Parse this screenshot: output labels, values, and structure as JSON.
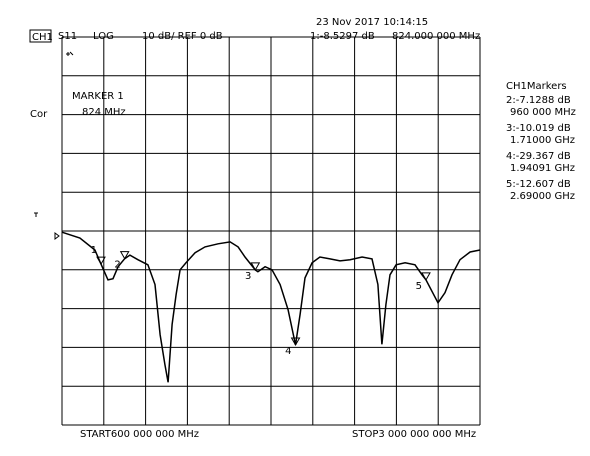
{
  "chart_data": {
    "type": "line",
    "header": {
      "channel": "CH1",
      "parameter": "S11",
      "format": "LOG",
      "scale": "10 dB/ REF 0 dB",
      "datetime": "23 Nov 2017  10:14:15",
      "active_marker_value": "1:-8.5297 dB",
      "active_marker_freq": "824.000 000 MHz"
    },
    "correction": "Cor",
    "marker_box": {
      "title": "MARKER 1",
      "freq": "824 MHz"
    },
    "start_label": "START600 000 000 MHz",
    "stop_label": "STOP3 000 000 000 MHz",
    "marker_table": {
      "title": "CH1Markers",
      "rows": [
        {
          "value": "2:-7.1288 dB",
          "freq": "960 000 MHz"
        },
        {
          "value": "3:-10.019 dB",
          "freq": "1.71000 GHz"
        },
        {
          "value": "4:-29.367 dB",
          "freq": "1.94091 GHz"
        },
        {
          "value": "5:-12.607 dB",
          "freq": "2.69000 GHz"
        }
      ]
    },
    "xlim": [
      600,
      3000
    ],
    "ylim": [
      -50,
      50
    ],
    "xticks": [
      600,
      840,
      1080,
      1320,
      1560,
      1800,
      2040,
      2280,
      2520,
      2760,
      3000
    ],
    "yticks": [
      -50,
      -40,
      -30,
      -20,
      -10,
      0,
      10,
      20,
      30,
      40,
      50
    ],
    "grid": true,
    "series": [
      {
        "color": "#000000",
        "x": [
          600,
          703,
          789,
          824,
          864,
          893,
          922,
          960,
          990,
          1036,
          1093,
          1134,
          1163,
          1191,
          1209,
          1232,
          1255,
          1278,
          1312,
          1364,
          1421,
          1496,
          1565,
          1611,
          1651,
          1710,
          1725,
          1766,
          1806,
          1852,
          1898,
          1940.91,
          1967,
          1995,
          2036,
          2081,
          2139,
          2196,
          2254,
          2323,
          2380,
          2414,
          2437,
          2460,
          2483,
          2518,
          2570,
          2627,
          2667,
          2690,
          2759,
          2799,
          2839,
          2885,
          2943,
          3000
        ],
        "values": [
          -0.3,
          -1.8,
          -4.9,
          -8.5297,
          -12.6,
          -12.3,
          -9.2,
          -7.1288,
          -6.2,
          -7.4,
          -8.7,
          -13.8,
          -26.7,
          -34.4,
          -39,
          -24.1,
          -16.4,
          -10,
          -8.2,
          -5.6,
          -4.1,
          -3.3,
          -2.8,
          -4.1,
          -6.7,
          -10.019,
          -10.5,
          -9.2,
          -10,
          -13.8,
          -20.3,
          -29.367,
          -21.5,
          -12.1,
          -8.2,
          -6.7,
          -7.2,
          -7.7,
          -7.4,
          -6.7,
          -7.2,
          -13.8,
          -29.2,
          -19,
          -11.3,
          -8.7,
          -8.2,
          -8.7,
          -11.3,
          -12.607,
          -18.5,
          -15.9,
          -11.3,
          -7.4,
          -5.4,
          -4.9
        ]
      }
    ],
    "markers": {
      "labels": [
        "1",
        "2",
        "3",
        "4",
        "5"
      ],
      "x": [
        824,
        960,
        1710,
        1940.91,
        2690
      ],
      "values": [
        -8.5297,
        -7.1288,
        -10.019,
        -29.367,
        -12.607
      ]
    }
  }
}
